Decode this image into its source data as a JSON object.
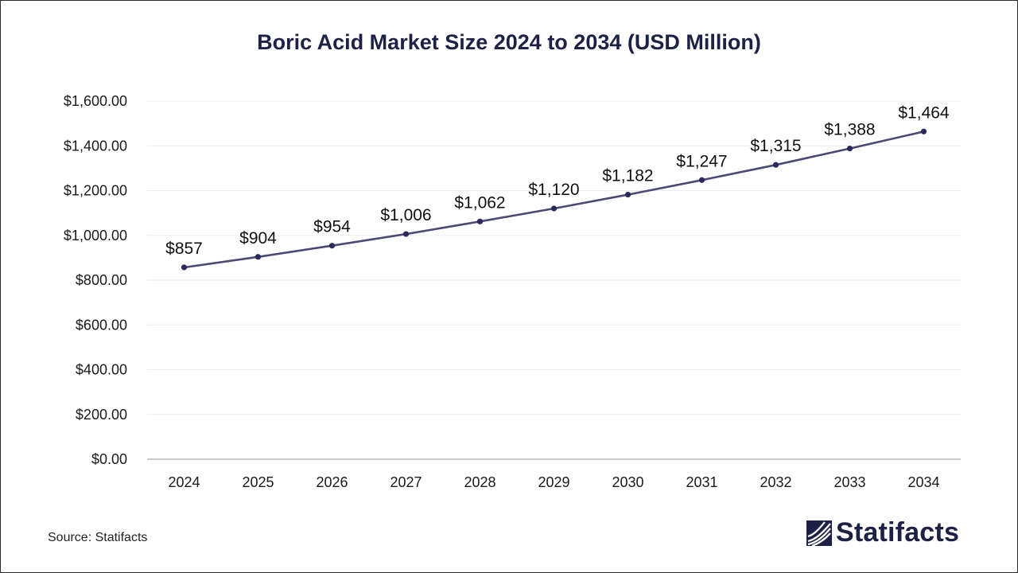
{
  "chart_data": {
    "type": "line",
    "title": "Boric Acid Market Size 2024 to 2034 (USD Million)",
    "xlabel": "",
    "ylabel": "",
    "categories": [
      "2024",
      "2025",
      "2026",
      "2027",
      "2028",
      "2029",
      "2030",
      "2031",
      "2032",
      "2033",
      "2034"
    ],
    "values": [
      857,
      904,
      954,
      1006,
      1062,
      1120,
      1182,
      1247,
      1315,
      1388,
      1464
    ],
    "data_labels": [
      "$857",
      "$904",
      "$954",
      "$1,006",
      "$1,062",
      "$1,120",
      "$1,182",
      "$1,247",
      "$1,315",
      "$1,388",
      "$1,464"
    ],
    "ylim": [
      0,
      1600
    ],
    "y_ticks": [
      0,
      200,
      400,
      600,
      800,
      1000,
      1200,
      1400,
      1600
    ],
    "y_tick_labels": [
      "$0.00",
      "$200.00",
      "$400.00",
      "$600.00",
      "$800.00",
      "$1,000.00",
      "$1,200.00",
      "$1,400.00",
      "$1,600.00"
    ],
    "grid": true,
    "legend": "none",
    "line_color": "#4a4a75",
    "marker_color": "#2a2a5c"
  },
  "footer": {
    "source": "Source: Statifacts",
    "brand": "Statifacts",
    "brand_color": "#1d2145"
  }
}
